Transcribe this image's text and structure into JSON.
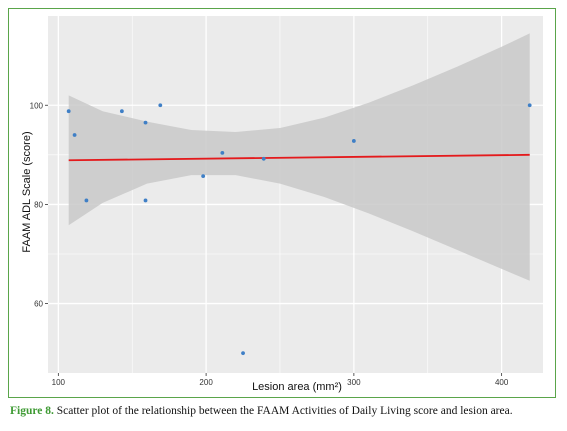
{
  "caption": {
    "figure_label": "Figure 8.",
    "text": " Scatter plot of the relationship between the FAAM Activities of Daily Living score and lesion area."
  },
  "colors": {
    "frame": "#5aa54a",
    "panel": "#ebebeb",
    "grid": "#ffffff",
    "band": "#c9c9c9",
    "line": "#e41a1c",
    "points": "#3f7fc6",
    "caption_label": "#3e9a33"
  },
  "chart_data": {
    "type": "scatter",
    "xlabel": "Lesion area (mm²)",
    "ylabel": "FAAM ADL Scale (score)",
    "xlim": [
      93,
      428
    ],
    "ylim": [
      46,
      118
    ],
    "xticks": [
      100,
      200,
      300,
      400
    ],
    "yticks": [
      60,
      80,
      100
    ],
    "grid": true,
    "points": [
      {
        "x": 107,
        "y": 98.8
      },
      {
        "x": 111,
        "y": 94.0
      },
      {
        "x": 119,
        "y": 80.8
      },
      {
        "x": 143,
        "y": 98.8
      },
      {
        "x": 159,
        "y": 96.5
      },
      {
        "x": 159,
        "y": 80.8
      },
      {
        "x": 169,
        "y": 100
      },
      {
        "x": 198,
        "y": 85.7
      },
      {
        "x": 211,
        "y": 90.4
      },
      {
        "x": 225,
        "y": 50.0
      },
      {
        "x": 239,
        "y": 89.2
      },
      {
        "x": 300,
        "y": 92.8
      },
      {
        "x": 419,
        "y": 100
      }
    ],
    "regression": {
      "x": [
        107,
        419
      ],
      "y": [
        88.9,
        90.0
      ]
    },
    "confidence_band": {
      "x": [
        107,
        130,
        160,
        190,
        220,
        250,
        280,
        310,
        340,
        370,
        400,
        419
      ],
      "lower": [
        75.8,
        80.3,
        84.2,
        85.9,
        85.9,
        84.2,
        81.5,
        78.2,
        74.6,
        70.8,
        67.0,
        64.6
      ],
      "upper": [
        102.0,
        98.8,
        96.7,
        95.0,
        94.6,
        95.4,
        97.5,
        100.5,
        104.0,
        107.8,
        111.8,
        114.5
      ]
    }
  }
}
